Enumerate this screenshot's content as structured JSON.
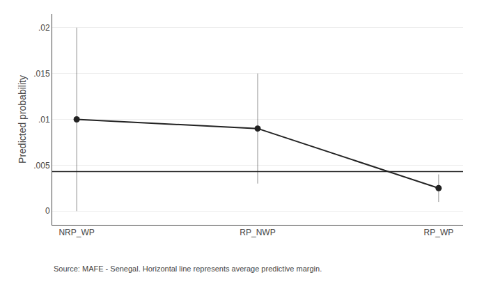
{
  "chart_data": {
    "type": "line",
    "categories": [
      "NRP_WP",
      "RP_NWP",
      "RP_WP"
    ],
    "values": [
      0.01,
      0.009,
      0.0025
    ],
    "ci_upper": [
      0.02,
      0.015,
      0.004
    ],
    "ci_lower": [
      0.0,
      0.003,
      0.001
    ],
    "reference_line": 0.0043,
    "ylabel": "Predicted probability",
    "ylim": [
      -0.0015,
      0.0215
    ],
    "yticks": [
      0,
      {
        "value": 0.005,
        "label": ".005"
      },
      {
        "value": 0.01,
        "label": ".01"
      },
      {
        "value": 0.015,
        "label": ".015"
      },
      {
        "value": 0.02,
        "label": ".02"
      }
    ],
    "annotation": "Source: MAFE - Senegal. Horizontal line represents average predictive margin.",
    "color": "#222222",
    "marker": "circle",
    "grid": true
  }
}
